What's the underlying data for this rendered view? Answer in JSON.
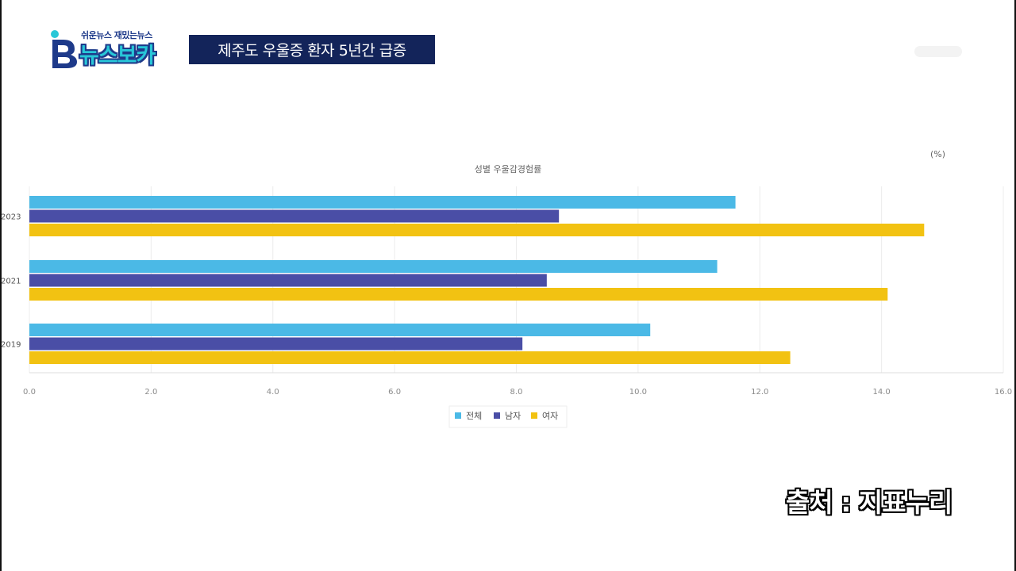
{
  "logo": {
    "tagline": "쉬운뉴스 재밌는뉴스",
    "name": "뉴스보카",
    "mark": "B"
  },
  "headline": "제주도 우울증 환자 5년간 급증",
  "source": "출처 : 지표누리",
  "colors": {
    "headline_bg": "#13245a",
    "total": "#4bb9e6",
    "male": "#4a4ea6",
    "female": "#f2c212"
  },
  "chart_data": {
    "type": "bar",
    "orientation": "horizontal",
    "title": "성별 우울감경험률",
    "unit": "(%)",
    "categories": [
      "2023",
      "2021",
      "2019"
    ],
    "series": [
      {
        "name": "전체",
        "values": [
          11.6,
          11.3,
          10.2
        ]
      },
      {
        "name": "남자",
        "values": [
          8.7,
          8.5,
          8.1
        ]
      },
      {
        "name": "여자",
        "values": [
          14.7,
          14.1,
          12.5
        ]
      }
    ],
    "xlim": [
      0,
      16
    ],
    "xticks": [
      "0.0",
      "2.0",
      "4.0",
      "6.0",
      "8.0",
      "10.0",
      "12.0",
      "14.0",
      "16.0"
    ],
    "grid": true,
    "legend": "bottom-center"
  }
}
